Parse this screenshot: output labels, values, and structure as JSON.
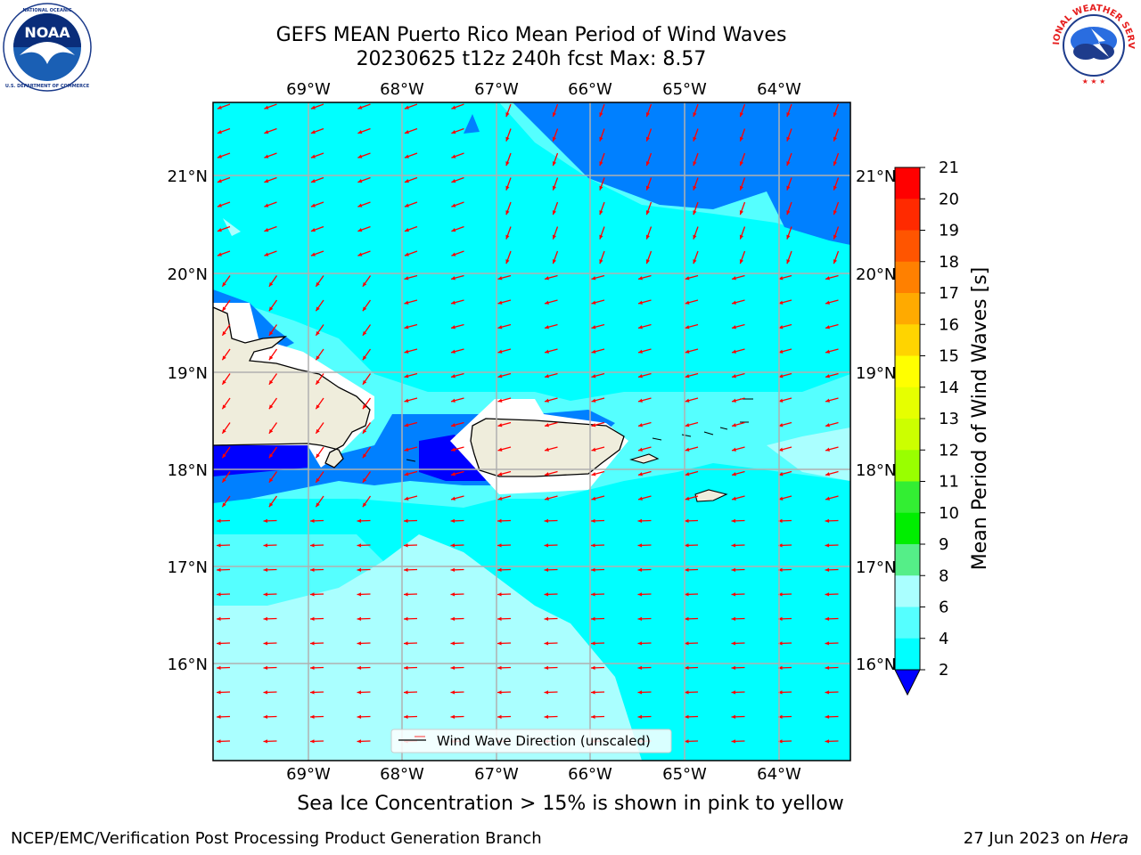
{
  "header": {
    "title_line1": "GEFS MEAN Puerto Rico Mean Period of Wind Waves",
    "title_line2": "20230625 t12z 240h fcst   Max: 8.57"
  },
  "logos": {
    "noaa_text": "NOAA",
    "noaa_ring_text": "NATIONAL OCEANIC AND ATMOSPHERIC ADMINISTRATION · U.S. DEPARTMENT OF COMMERCE",
    "nws_ring_text": "NATIONAL WEATHER SERVICE"
  },
  "map": {
    "lon_labels": [
      "69°W",
      "68°W",
      "67°W",
      "66°W",
      "65°W",
      "64°W"
    ],
    "lat_labels": [
      "21°N",
      "20°N",
      "19°N",
      "18°N",
      "17°N",
      "16°N"
    ],
    "legend_label": "Wind Wave Direction (unscaled)",
    "vector_color": "#ff0000",
    "land_color": "#efeddc",
    "grid_color": "#b0b0b0"
  },
  "colorbar": {
    "label": "Mean Period of Wind Waves [s]",
    "ticks": [
      "21",
      "20",
      "19",
      "18",
      "17",
      "16",
      "15",
      "14",
      "13",
      "12",
      "11",
      "10",
      "9",
      "8",
      "6",
      "4",
      "2"
    ],
    "colors": [
      "#ff0000",
      "#ff2a00",
      "#ff5500",
      "#ff8000",
      "#ffaa00",
      "#ffd400",
      "#ffff00",
      "#e6ff00",
      "#ccff00",
      "#99ff00",
      "#33ee33",
      "#00ee00",
      "#55ee88",
      "#aaffff",
      "#55ffff",
      "#00ffff",
      "#0080ff",
      "#0000ff"
    ]
  },
  "note": "Sea Ice Concentration > 15% is shown in pink to yellow",
  "footer": {
    "left": "NCEP/EMC/Verification Post Processing Product Generation Branch",
    "right_date": "27 Jun 2023 on ",
    "right_machine": "Hera"
  }
}
